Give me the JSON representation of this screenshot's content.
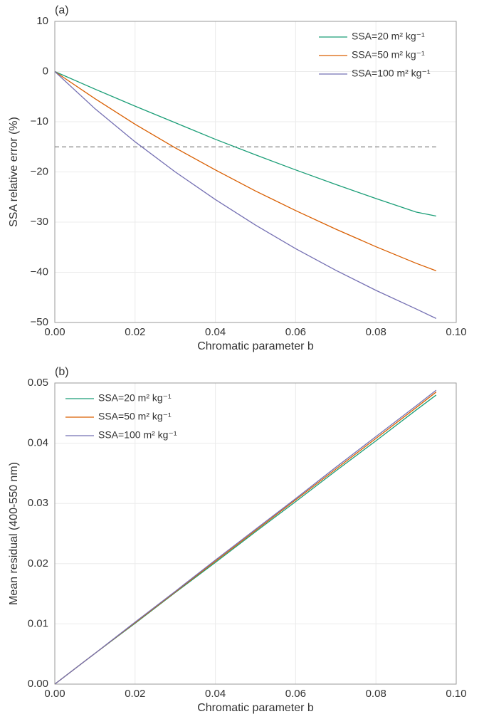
{
  "chart_data": [
    {
      "type": "line",
      "title": "(a)",
      "xlabel": "Chromatic parameter b",
      "ylabel": "SSA relative error (%)",
      "x": [
        0,
        0.01,
        0.02,
        0.03,
        0.04,
        0.05,
        0.06,
        0.07,
        0.08,
        0.09,
        0.095
      ],
      "series": [
        {
          "name": "SSA=20 m² kg⁻¹",
          "color": "#1b9e77",
          "values": [
            0,
            -3.5,
            -6.9,
            -10.2,
            -13.5,
            -16.6,
            -19.6,
            -22.5,
            -25.3,
            -28.0,
            -28.8
          ]
        },
        {
          "name": "SSA=50 m² kg⁻¹",
          "color": "#d95f02",
          "values": [
            0,
            -5.4,
            -10.5,
            -15.2,
            -19.6,
            -23.8,
            -27.7,
            -31.4,
            -34.9,
            -38.2,
            -39.7
          ]
        },
        {
          "name": "SSA=100 m² kg⁻¹",
          "color": "#7570b3",
          "values": [
            0,
            -7.4,
            -14.0,
            -20.0,
            -25.5,
            -30.6,
            -35.3,
            -39.6,
            -43.6,
            -47.3,
            -49.2
          ]
        }
      ],
      "hline": -15,
      "xlim": [
        0,
        0.1
      ],
      "xticks": [
        {
          "value": 0,
          "label": "0.00"
        },
        {
          "value": 0.02,
          "label": "0.02"
        },
        {
          "value": 0.04,
          "label": "0.04"
        },
        {
          "value": 0.06,
          "label": "0.06"
        },
        {
          "value": 0.08,
          "label": "0.08"
        },
        {
          "value": 0.1,
          "label": "0.10"
        }
      ],
      "ylim": [
        -50,
        10
      ],
      "yticks": [
        {
          "value": -50,
          "label": "−50"
        },
        {
          "value": -40,
          "label": "−40"
        },
        {
          "value": -30,
          "label": "−30"
        },
        {
          "value": -20,
          "label": "−20"
        },
        {
          "value": -10,
          "label": "−10"
        },
        0,
        10
      ],
      "grid": true,
      "legend": "upper right"
    },
    {
      "type": "line",
      "title": "(b)",
      "xlabel": "Chromatic parameter b",
      "ylabel": "Mean residual (400-550 nm)",
      "x": [
        0,
        0.01,
        0.02,
        0.03,
        0.04,
        0.05,
        0.06,
        0.07,
        0.08,
        0.09,
        0.095
      ],
      "series": [
        {
          "name": "SSA=20 m² kg⁻¹",
          "color": "#1b9e77",
          "values": [
            0,
            0.0051,
            0.0101,
            0.0152,
            0.0202,
            0.0253,
            0.0303,
            0.0354,
            0.0404,
            0.0455,
            0.048
          ]
        },
        {
          "name": "SSA=50 m² kg⁻¹",
          "color": "#d95f02",
          "values": [
            0,
            0.0051,
            0.0102,
            0.0153,
            0.0204,
            0.0255,
            0.0306,
            0.0357,
            0.0408,
            0.0459,
            0.0485
          ]
        },
        {
          "name": "SSA=100 m² kg⁻¹",
          "color": "#7570b3",
          "values": [
            0,
            0.0051,
            0.0103,
            0.0154,
            0.0206,
            0.0257,
            0.0308,
            0.036,
            0.0411,
            0.0462,
            0.0488
          ]
        }
      ],
      "xlim": [
        0,
        0.1
      ],
      "xticks": [
        {
          "value": 0,
          "label": "0.00"
        },
        {
          "value": 0.02,
          "label": "0.02"
        },
        {
          "value": 0.04,
          "label": "0.04"
        },
        {
          "value": 0.06,
          "label": "0.06"
        },
        {
          "value": 0.08,
          "label": "0.08"
        },
        {
          "value": 0.1,
          "label": "0.10"
        }
      ],
      "ylim": [
        0,
        0.05
      ],
      "yticks": [
        {
          "value": 0,
          "label": "0.00"
        },
        {
          "value": 0.01,
          "label": "0.01"
        },
        {
          "value": 0.02,
          "label": "0.02"
        },
        {
          "value": 0.03,
          "label": "0.03"
        },
        {
          "value": 0.04,
          "label": "0.04"
        },
        {
          "value": 0.05,
          "label": "0.05"
        }
      ],
      "grid": true,
      "legend": "upper left"
    }
  ]
}
